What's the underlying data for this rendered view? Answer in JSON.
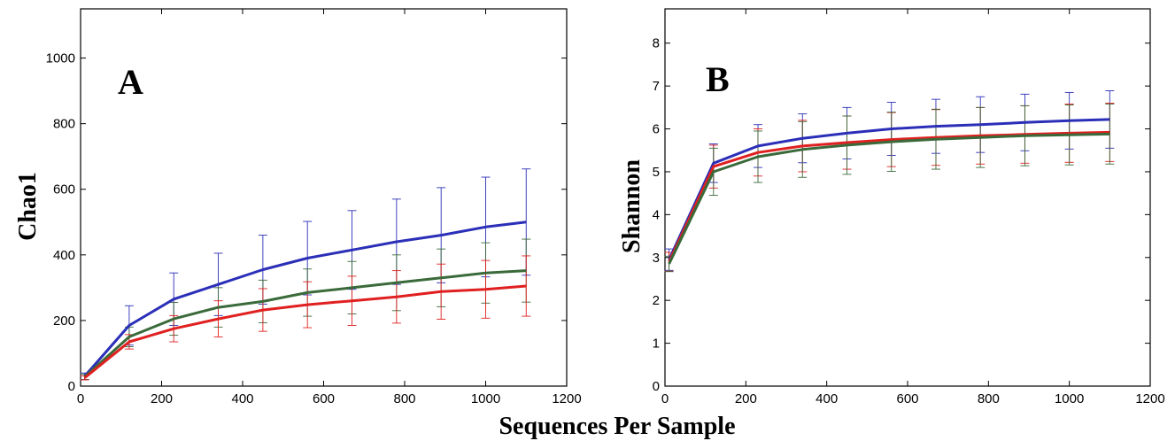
{
  "chart_data": [
    {
      "type": "line",
      "panel_letter": "A",
      "ylabel": "Chao1",
      "xlabel": "",
      "xlim": [
        0,
        1200
      ],
      "ylim": [
        0,
        1150
      ],
      "xticks": [
        0,
        200,
        400,
        600,
        800,
        1000,
        1200
      ],
      "yticks": [
        0,
        200,
        400,
        600,
        800,
        1000
      ],
      "grid": false,
      "x": [
        10,
        120,
        230,
        340,
        450,
        560,
        670,
        780,
        890,
        1000,
        1100
      ],
      "series": [
        {
          "color": "#2b2fb8",
          "values": [
            30,
            185,
            265,
            310,
            355,
            390,
            415,
            440,
            460,
            485,
            500
          ],
          "errors": [
            10,
            60,
            80,
            95,
            105,
            112,
            120,
            130,
            145,
            152,
            162
          ]
        },
        {
          "color": "#3a6a3a",
          "values": [
            28,
            150,
            205,
            240,
            258,
            285,
            300,
            315,
            330,
            345,
            352
          ],
          "errors": [
            8,
            30,
            50,
            60,
            65,
            72,
            80,
            85,
            88,
            92,
            96
          ]
        },
        {
          "color": "#e02020",
          "values": [
            25,
            135,
            175,
            205,
            232,
            248,
            260,
            272,
            288,
            295,
            305
          ],
          "errors": [
            6,
            22,
            40,
            55,
            65,
            70,
            75,
            80,
            84,
            88,
            92
          ]
        }
      ]
    },
    {
      "type": "line",
      "panel_letter": "B",
      "ylabel": "Shannon",
      "xlabel": "",
      "xlim": [
        0,
        1200
      ],
      "ylim": [
        0,
        8.8
      ],
      "xticks": [
        0,
        200,
        400,
        600,
        800,
        1000,
        1200
      ],
      "yticks": [
        0,
        1,
        2,
        3,
        4,
        5,
        6,
        7,
        8
      ],
      "grid": false,
      "x": [
        10,
        120,
        230,
        340,
        450,
        560,
        670,
        780,
        890,
        1000,
        1100
      ],
      "series": [
        {
          "color": "#2b2fb8",
          "values": [
            2.95,
            5.2,
            5.6,
            5.78,
            5.9,
            6.0,
            6.06,
            6.1,
            6.15,
            6.19,
            6.22
          ],
          "errors": [
            0.25,
            0.45,
            0.5,
            0.57,
            0.6,
            0.62,
            0.63,
            0.65,
            0.66,
            0.66,
            0.67
          ]
        },
        {
          "color": "#e02020",
          "values": [
            2.9,
            5.12,
            5.45,
            5.6,
            5.68,
            5.75,
            5.8,
            5.84,
            5.87,
            5.9,
            5.92
          ],
          "errors": [
            0.22,
            0.5,
            0.55,
            0.6,
            0.62,
            0.63,
            0.65,
            0.66,
            0.67,
            0.68,
            0.68
          ]
        },
        {
          "color": "#3a6a3a",
          "values": [
            2.85,
            5.0,
            5.35,
            5.52,
            5.62,
            5.7,
            5.76,
            5.8,
            5.84,
            5.86,
            5.88
          ],
          "errors": [
            0.18,
            0.55,
            0.6,
            0.65,
            0.68,
            0.69,
            0.7,
            0.7,
            0.7,
            0.7,
            0.7
          ]
        }
      ]
    }
  ],
  "shared_xlabel": "Sequences Per Sample"
}
